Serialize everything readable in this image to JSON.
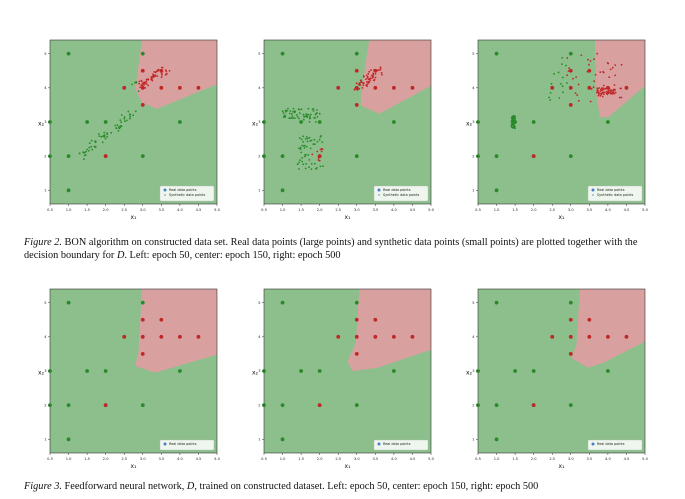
{
  "plots": [
    {
      "id": "bon-epoch-50",
      "synthetic": true,
      "variant": 0,
      "legend": [
        "Real data points",
        "Synthetic data points"
      ],
      "chart_data": {
        "type": "scatter",
        "xlabel": "x₁",
        "ylabel": "x₂",
        "xlim": [
          0.5,
          5.0
        ],
        "ylim": [
          0.6,
          5.4
        ],
        "xticks": [
          "0.5",
          "1.0",
          "1.5",
          "2.0",
          "2.5",
          "3.0",
          "3.5",
          "4.0",
          "4.5",
          "5.0"
        ],
        "yticks": [
          "1",
          "2",
          "3",
          "4",
          "5"
        ]
      }
    },
    {
      "id": "bon-epoch-150",
      "synthetic": true,
      "variant": 1,
      "legend": [
        "Real data points",
        "Synthetic data points"
      ],
      "chart_data": {
        "type": "scatter",
        "xlabel": "x₁",
        "ylabel": "x₂",
        "xlim": [
          0.5,
          5.0
        ],
        "ylim": [
          0.6,
          5.4
        ],
        "xticks": [
          "0.5",
          "1.0",
          "1.5",
          "2.0",
          "2.5",
          "3.0",
          "3.5",
          "4.0",
          "4.5",
          "5.0"
        ],
        "yticks": [
          "1",
          "2",
          "3",
          "4",
          "5"
        ]
      }
    },
    {
      "id": "bon-epoch-500",
      "synthetic": true,
      "variant": 2,
      "legend": [
        "Real data points",
        "Synthetic data points"
      ],
      "chart_data": {
        "type": "scatter",
        "xlabel": "x₁",
        "ylabel": "x₂",
        "xlim": [
          0.5,
          5.0
        ],
        "ylim": [
          0.6,
          5.4
        ],
        "xticks": [
          "0.5",
          "1.0",
          "1.5",
          "2.0",
          "2.5",
          "3.0",
          "3.5",
          "4.0",
          "4.5",
          "5.0"
        ],
        "yticks": [
          "1",
          "2",
          "3",
          "4",
          "5"
        ]
      }
    },
    {
      "id": "ffnn-epoch-50",
      "synthetic": false,
      "variant": 3,
      "legend": [
        "Real data points"
      ],
      "chart_data": {
        "type": "scatter",
        "xlabel": "x₁",
        "ylabel": "x₂",
        "xlim": [
          0.5,
          5.0
        ],
        "ylim": [
          0.6,
          5.4
        ],
        "xticks": [
          "0.5",
          "1.0",
          "1.5",
          "2.0",
          "2.5",
          "3.0",
          "3.5",
          "4.0",
          "4.5",
          "5.0"
        ],
        "yticks": [
          "1",
          "2",
          "3",
          "4",
          "5"
        ]
      }
    },
    {
      "id": "ffnn-epoch-150",
      "synthetic": false,
      "variant": 4,
      "legend": [
        "Real data points"
      ],
      "chart_data": {
        "type": "scatter",
        "xlabel": "x₁",
        "ylabel": "x₂",
        "xlim": [
          0.5,
          5.0
        ],
        "ylim": [
          0.6,
          5.4
        ],
        "xticks": [
          "0.5",
          "1.0",
          "1.5",
          "2.0",
          "2.5",
          "3.0",
          "3.5",
          "4.0",
          "4.5",
          "5.0"
        ],
        "yticks": [
          "1",
          "2",
          "3",
          "4",
          "5"
        ]
      }
    },
    {
      "id": "ffnn-epoch-500",
      "synthetic": false,
      "variant": 5,
      "legend": [
        "Real data points"
      ],
      "chart_data": {
        "type": "scatter",
        "xlabel": "x₁",
        "ylabel": "x₂",
        "xlim": [
          0.5,
          5.0
        ],
        "ylim": [
          0.6,
          5.4
        ],
        "xticks": [
          "0.5",
          "1.0",
          "1.5",
          "2.0",
          "2.5",
          "3.0",
          "3.5",
          "4.0",
          "4.5",
          "5.0"
        ],
        "yticks": [
          "1",
          "2",
          "3",
          "4",
          "5"
        ]
      }
    }
  ],
  "real_points": {
    "green": [
      [
        1,
        5
      ],
      [
        0.5,
        3
      ],
      [
        1.5,
        3
      ],
      [
        1,
        1
      ],
      [
        1,
        2
      ],
      [
        2,
        3
      ],
      [
        2,
        2
      ],
      [
        0.5,
        2
      ],
      [
        3,
        2
      ],
      [
        4,
        3
      ],
      [
        3,
        5
      ]
    ],
    "red": [
      [
        2.5,
        4
      ],
      [
        3,
        4
      ],
      [
        3,
        4.5
      ],
      [
        3.5,
        4
      ],
      [
        4,
        4
      ],
      [
        3,
        3.5
      ],
      [
        3.5,
        4.5
      ],
      [
        2,
        2
      ],
      [
        4.5,
        4
      ]
    ]
  },
  "colors": {
    "green_region": "#8cbf8c",
    "red_region": "#d9a0a0",
    "green_point": "#2a8a2a",
    "red_point": "#c02828",
    "legend_blue": "#4a7fd0"
  },
  "captions": {
    "fig2_label": "Figure 2.",
    "fig2_text_a": " BON algorithm on constructed data set.  Real data points (large points) and synthetic data points (small points) are plotted together with the decision boundary for ",
    "fig2_d": "D",
    "fig2_text_b": ". Left: epoch 50, center: epoch 150, right: epoch 500",
    "fig3_label": "Figure 3.",
    "fig3_text_a": " Feedforward neural network, ",
    "fig3_d": "D",
    "fig3_text_b": ", trained on constructed dataset. Left: epoch 50, center: epoch 150, right: epoch 500"
  }
}
